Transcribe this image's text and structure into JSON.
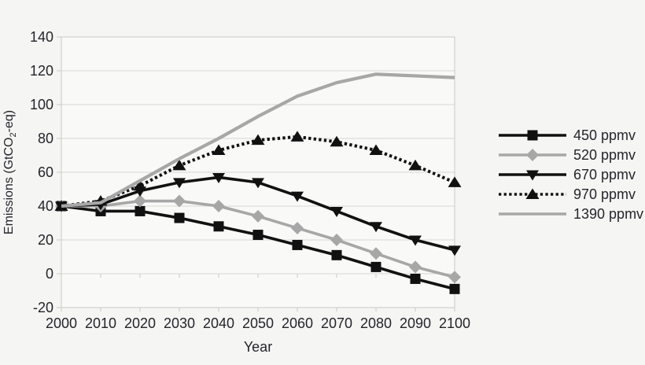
{
  "page": {
    "background": "#f5f5f3"
  },
  "colors": {
    "black_series": "#111111",
    "gray_series": "#a7a7a7",
    "grid": "#d6d6d6",
    "frame": "#c9c9c9",
    "plot_bg": "#f9f9f8",
    "text": "#24242b"
  },
  "chart_data": {
    "type": "line",
    "title": "",
    "xlabel": "Year",
    "ylabel_parts": {
      "pre": "Emissions (GtCO",
      "sub": "2",
      "post": "-eq)"
    },
    "x": [
      2000,
      2010,
      2020,
      2030,
      2040,
      2050,
      2060,
      2070,
      2080,
      2090,
      2100
    ],
    "x_tick_labels": [
      "2000",
      "2010",
      "2020",
      "2030",
      "2040",
      "2050",
      "2060",
      "2070",
      "2080",
      "2090",
      "2100"
    ],
    "ylim": [
      -20,
      140
    ],
    "ytick_step": 20,
    "y_tick_labels": [
      "-20",
      "0",
      "20",
      "40",
      "60",
      "80",
      "100",
      "120",
      "140"
    ],
    "grid": true,
    "legend_position": "right",
    "series": [
      {
        "name": "450 ppmv",
        "color": "#111111",
        "marker": "square",
        "dash": "solid",
        "width": 3.6,
        "values": [
          40,
          37,
          37,
          33,
          28,
          23,
          17,
          11,
          4,
          -3,
          -9
        ]
      },
      {
        "name": "520 ppmv",
        "color": "#a7a7a7",
        "marker": "diamond",
        "dash": "solid",
        "width": 3.6,
        "values": [
          40,
          40,
          43,
          43,
          40,
          34,
          27,
          20,
          12,
          4,
          -2
        ]
      },
      {
        "name": "670 ppmv",
        "color": "#111111",
        "marker": "triangle-down",
        "dash": "solid",
        "width": 3.6,
        "values": [
          40,
          41,
          49,
          54,
          57,
          54,
          46,
          37,
          28,
          20,
          14
        ]
      },
      {
        "name": "970 ppmv",
        "color": "#111111",
        "marker": "triangle-up",
        "dash": "dotted",
        "width": 4,
        "values": [
          40,
          43,
          52,
          64,
          73,
          79,
          81,
          78,
          73,
          64,
          54
        ]
      },
      {
        "name": "1390 ppmv",
        "color": "#a7a7a7",
        "marker": "none",
        "dash": "solid",
        "width": 4.2,
        "values": [
          40,
          42,
          55,
          68,
          80,
          93,
          105,
          113,
          118,
          117,
          116
        ]
      }
    ]
  }
}
